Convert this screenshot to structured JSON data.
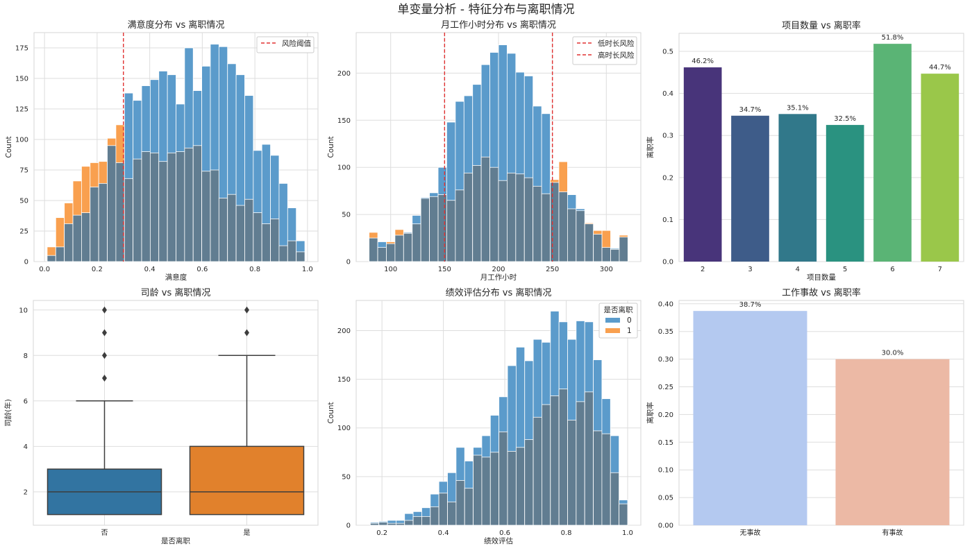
{
  "suptitle": "单变量分析 - 特征分布与离职情况",
  "colors": {
    "stay": "#5b9bcb",
    "left": "#f9a04f",
    "overlap": "#617d91",
    "threshold": "#e03030",
    "grid": "#dddddd"
  },
  "chart_data": [
    {
      "type": "histogram",
      "title": "满意度分布 vs 离职情况",
      "xlabel": "满意度",
      "ylabel": "Count",
      "xlim": [
        -0.04,
        1.04
      ],
      "ylim": [
        0,
        187.5
      ],
      "xticks": [
        "0.0",
        "0.2",
        "0.4",
        "0.6",
        "0.8",
        "1.0"
      ],
      "yticks": [
        "0",
        "25",
        "50",
        "75",
        "100",
        "125",
        "150",
        "175"
      ],
      "bin_range": [
        0.01,
        0.99
      ],
      "series": [
        {
          "color": "#5b9bcb",
          "values": [
            5,
            12,
            31,
            38,
            40,
            61,
            64,
            95,
            81,
            138,
            132,
            144,
            149,
            156,
            153,
            129,
            175,
            140,
            160,
            178,
            176,
            162,
            153,
            136,
            91,
            96,
            87,
            64,
            44,
            17
          ]
        },
        {
          "color": "#f9a04f",
          "values": [
            12,
            36,
            48,
            66,
            78,
            81,
            82,
            101,
            112,
            68,
            84,
            90,
            89,
            82,
            89,
            90,
            93,
            95,
            74,
            75,
            52,
            55,
            46,
            51,
            40,
            31,
            35,
            13,
            17,
            8
          ]
        }
      ],
      "thresholds": [
        {
          "x": 0.3,
          "label": "风险阈值"
        }
      ],
      "legend": "top-right",
      "grid": true
    },
    {
      "type": "histogram",
      "title": "月工作小时分布 vs 离职情况",
      "xlabel": "月工作小时",
      "ylabel": "Count",
      "xlim": [
        68,
        332
      ],
      "ylim": [
        0,
        243
      ],
      "xticks": [
        "100",
        "150",
        "200",
        "250",
        "300"
      ],
      "yticks": [
        "0",
        "50",
        "100",
        "150",
        "200"
      ],
      "bin_range": [
        80,
        320
      ],
      "series": [
        {
          "color": "#5b9bcb",
          "values": [
            25,
            21,
            19,
            28,
            31,
            49,
            68,
            73,
            100,
            148,
            170,
            176,
            188,
            209,
            222,
            230,
            221,
            201,
            197,
            165,
            157,
            84,
            74,
            71,
            56,
            40,
            29,
            15,
            14,
            26
          ]
        },
        {
          "color": "#f9a04f",
          "values": [
            31,
            15,
            21,
            34,
            30,
            40,
            67,
            69,
            71,
            65,
            76,
            94,
            102,
            111,
            100,
            86,
            94,
            93,
            89,
            80,
            72,
            87,
            106,
            56,
            54,
            41,
            33,
            33,
            13,
            28
          ]
        }
      ],
      "thresholds": [
        {
          "x": 150,
          "label": "低时长风险"
        },
        {
          "x": 250,
          "label": "高时长风险"
        }
      ],
      "legend": "top-right",
      "grid": true
    },
    {
      "type": "bar",
      "title": "项目数量 vs 离职率",
      "xlabel": "项目数量",
      "ylabel": "离职率",
      "ylim": [
        0,
        0.543
      ],
      "yticks": [
        "0.0",
        "0.1",
        "0.2",
        "0.3",
        "0.4",
        "0.5"
      ],
      "categories": [
        "2",
        "3",
        "4",
        "5",
        "6",
        "7"
      ],
      "values": [
        0.462,
        0.347,
        0.351,
        0.325,
        0.518,
        0.447
      ],
      "labels": [
        "46.2%",
        "34.7%",
        "35.1%",
        "32.5%",
        "51.8%",
        "44.7%"
      ],
      "colors": [
        "#48347a",
        "#3e5c89",
        "#31788a",
        "#2a9280",
        "#5ab475",
        "#9ac74a"
      ],
      "grid": true
    },
    {
      "type": "box",
      "title": "司龄 vs 离职情况",
      "xlabel": "是否离职",
      "ylabel": "司龄(年)",
      "ylim": [
        0.53,
        10.42
      ],
      "yticks": [
        "2",
        "4",
        "6",
        "8",
        "10"
      ],
      "categories": [
        "否",
        "是"
      ],
      "boxes": [
        {
          "whisker_low": 1,
          "q1": 1,
          "median": 2,
          "q3": 3,
          "whisker_high": 6,
          "outliers": [
            7,
            8,
            9,
            10
          ],
          "color": "#3274a1"
        },
        {
          "whisker_low": 1,
          "q1": 1,
          "median": 2,
          "q3": 4,
          "whisker_high": 8,
          "outliers": [
            9,
            10
          ],
          "color": "#e1812c"
        }
      ],
      "grid": true
    },
    {
      "type": "histogram",
      "title": "绩效评估分布 vs 离职情况",
      "xlabel": "绩效评估",
      "ylabel": "Count",
      "xlim": [
        0.116,
        1.043
      ],
      "ylim": [
        0,
        231
      ],
      "xticks": [
        "0.2",
        "0.4",
        "0.6",
        "0.8",
        "1.0"
      ],
      "yticks": [
        "0",
        "50",
        "100",
        "150",
        "200"
      ],
      "bin_range": [
        0.162,
        1.0
      ],
      "series": [
        {
          "name": "0",
          "color": "#5b9bcb",
          "values": [
            3,
            4,
            5,
            5,
            12,
            14,
            18,
            32,
            45,
            54,
            80,
            66,
            80,
            92,
            113,
            132,
            164,
            183,
            169,
            191,
            188,
            220,
            209,
            191,
            210,
            209,
            170,
            130,
            92,
            26
          ]
        },
        {
          "name": "1",
          "color": "#f9a04f",
          "values": [
            2,
            3,
            2,
            2,
            5,
            9,
            9,
            19,
            33,
            24,
            46,
            38,
            72,
            70,
            75,
            96,
            76,
            80,
            88,
            111,
            124,
            133,
            140,
            108,
            127,
            137,
            97,
            94,
            54,
            22
          ]
        }
      ],
      "legend_title": "是否离职",
      "legend": "top-right",
      "grid": true
    },
    {
      "type": "bar",
      "title": "工作事故 vs 离职率",
      "xlabel": "",
      "ylabel": "离职率",
      "ylim": [
        0,
        0.406
      ],
      "yticks": [
        "0.00",
        "0.05",
        "0.10",
        "0.15",
        "0.20",
        "0.25",
        "0.30",
        "0.35",
        "0.40"
      ],
      "categories": [
        "无事故",
        "有事故"
      ],
      "values": [
        0.387,
        0.3
      ],
      "labels": [
        "38.7%",
        "30.0%"
      ],
      "colors": [
        "#b4c9f0",
        "#ecb9a5"
      ],
      "grid": true
    }
  ]
}
